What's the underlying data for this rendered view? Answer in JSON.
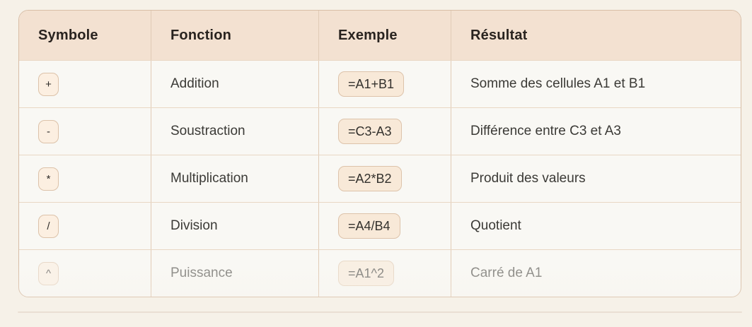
{
  "table": {
    "columns": {
      "symbole": "Symbole",
      "fonction": "Fonction",
      "exemple": "Exemple",
      "resultat": "Résultat"
    },
    "rows": [
      {
        "symbol": "+",
        "fonction": "Addition",
        "exemple": "=A1+B1",
        "resultat": "Somme des cellules A1 et B1"
      },
      {
        "symbol": "-",
        "fonction": "Soustraction",
        "exemple": "=C3-A3",
        "resultat": "Différence entre C3 et A3"
      },
      {
        "symbol": "*",
        "fonction": "Multiplication",
        "exemple": "=A2*B2",
        "resultat": "Produit des valeurs"
      },
      {
        "symbol": "/",
        "fonction": "Division",
        "exemple": "=A4/B4",
        "resultat": "Quotient"
      },
      {
        "symbol": "^",
        "fonction": "Puissance",
        "exemple": "=A1^2",
        "resultat": "Carré de A1"
      }
    ]
  },
  "colors": {
    "page_background": "#f6f1e8",
    "header_background": "#f3e1d1",
    "row_background": "#f9f8f4",
    "table_border": "#d8bea7",
    "chip_background": "#f8e9d8",
    "header_text": "#29231f",
    "body_text": "#3b3a36"
  }
}
